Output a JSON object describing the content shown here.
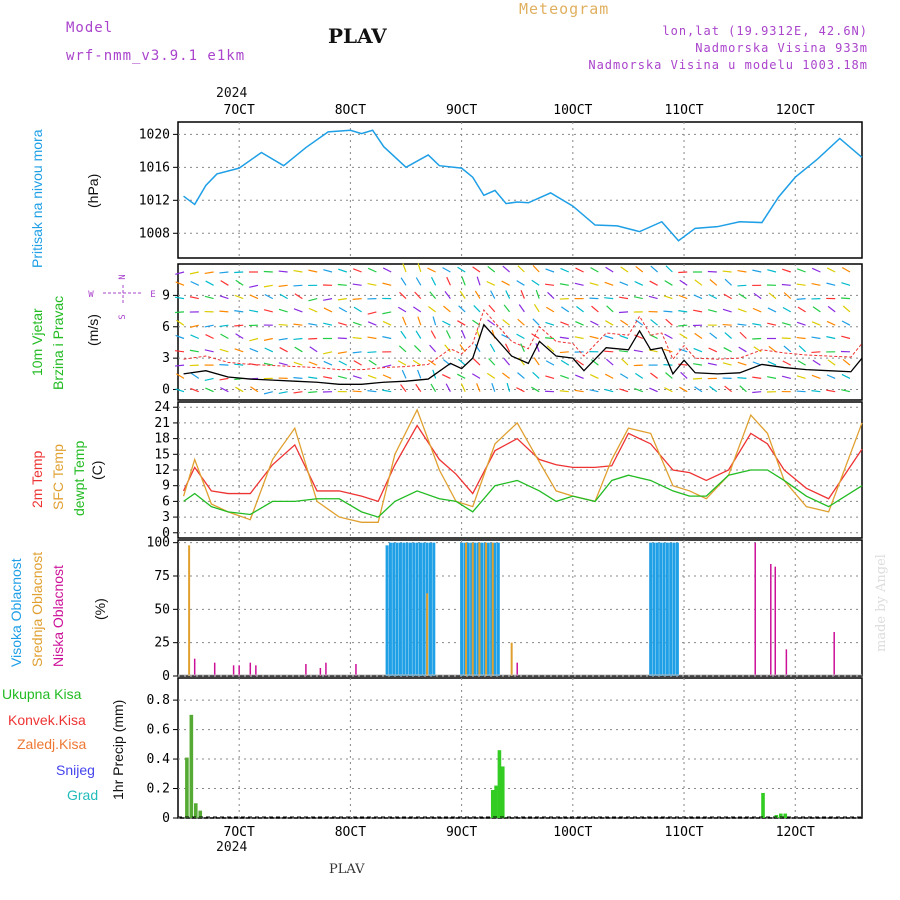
{
  "header": {
    "model_label": "Model",
    "model_name": "wrf-nmm_v3.9.1  e1km",
    "station": "PLAV",
    "meteogram": "Meteogram",
    "lonlat": "lon,lat (19.9312E, 42.6N)",
    "elevation": "Nadmorska Visina 933m",
    "model_elevation": "Nadmorska Visina u modelu 1003.18m",
    "year_top": "2024",
    "year_bottom": "2024",
    "footer_station": "PLAV",
    "watermark": "made by Angel"
  },
  "colors": {
    "pressure": "#1e9fe6",
    "temp2m": "#ee3333",
    "sfc": "#e0a030",
    "dewpt": "#22bb22",
    "high": "#1e9fe6",
    "mid": "#e0a030",
    "low": "#cc1199",
    "precip": "#33cc22",
    "purple": "#aa44cc"
  },
  "chart_data": [
    {
      "type": "line",
      "panel": "pressure",
      "ylabel_title": "Pritisak na nivou mora",
      "ylabel_unit": "(hPa)",
      "x_ticks": [
        "7OCT",
        "8OCT",
        "9OCT",
        "10OCT",
        "11OCT",
        "12OCT"
      ],
      "ylim": [
        1005,
        1021.5
      ],
      "y_ticks": [
        "1008",
        "1012",
        "1016",
        "1020"
      ],
      "x": [
        6.5,
        6.6,
        6.7,
        6.8,
        7.0,
        7.2,
        7.4,
        7.6,
        7.8,
        8.0,
        8.1,
        8.2,
        8.3,
        8.5,
        8.7,
        8.8,
        9.0,
        9.1,
        9.2,
        9.3,
        9.4,
        9.5,
        9.6,
        9.8,
        10.0,
        10.2,
        10.4,
        10.6,
        10.8,
        10.95,
        11.1,
        11.3,
        11.5,
        11.7,
        11.85,
        12.0,
        12.2,
        12.4,
        12.6
      ],
      "values": [
        1012.5,
        1011.5,
        1013.8,
        1015.2,
        1015.9,
        1017.8,
        1016.2,
        1018.4,
        1020.3,
        1020.5,
        1020.1,
        1020.5,
        1018.5,
        1016.0,
        1017.5,
        1016.2,
        1015.9,
        1014.8,
        1012.6,
        1013.2,
        1011.6,
        1011.8,
        1011.7,
        1012.9,
        1011.3,
        1009.0,
        1008.9,
        1008.2,
        1009.4,
        1007.1,
        1008.6,
        1008.8,
        1009.4,
        1009.3,
        1012.4,
        1014.8,
        1017.0,
        1019.5,
        1017.2
      ],
      "grid": true
    },
    {
      "type": "scatter",
      "panel": "wind",
      "ylabel_title1": "10m Vjetar",
      "ylabel_title2": "Brzina i Pravac",
      "ylabel_unit": "(m/s)",
      "compass": {
        "n": "N",
        "s": "S",
        "e": "E",
        "w": "W"
      },
      "ylim": [
        -1,
        12
      ],
      "y_ticks": [
        "0",
        "3",
        "6",
        "9"
      ],
      "x": [
        6.5,
        6.7,
        6.9,
        7.1,
        7.3,
        7.5,
        7.7,
        7.9,
        8.1,
        8.3,
        8.5,
        8.7,
        8.9,
        9.0,
        9.1,
        9.2,
        9.3,
        9.45,
        9.6,
        9.7,
        9.85,
        10.0,
        10.1,
        10.3,
        10.5,
        10.6,
        10.7,
        10.8,
        10.9,
        11.0,
        11.1,
        11.3,
        11.5,
        11.7,
        11.9,
        12.1,
        12.3,
        12.5,
        12.6
      ],
      "values": [
        1.5,
        1.8,
        1.2,
        1.0,
        0.9,
        0.8,
        0.7,
        0.5,
        0.5,
        0.7,
        0.8,
        1.0,
        2.5,
        2.0,
        3.0,
        6.2,
        5.0,
        3.2,
        2.5,
        4.6,
        3.2,
        3.0,
        1.8,
        4.0,
        3.8,
        5.6,
        3.8,
        4.0,
        1.5,
        2.8,
        1.6,
        1.5,
        1.6,
        2.4,
        2.1,
        1.9,
        1.8,
        1.7,
        3.0
      ],
      "grid": true
    },
    {
      "type": "line",
      "panel": "temperature",
      "ylabel_2m": "2m Temp",
      "ylabel_sfc": "SFC Temp",
      "ylabel_dew": "dewpt Temp",
      "ylabel_unit": "(C)",
      "ylim": [
        -1,
        25
      ],
      "y_ticks": [
        "0",
        "3",
        "6",
        "9",
        "12",
        "15",
        "18",
        "21",
        "24"
      ],
      "x": [
        6.5,
        6.6,
        6.75,
        6.9,
        7.1,
        7.3,
        7.5,
        7.7,
        7.9,
        8.1,
        8.25,
        8.4,
        8.6,
        8.8,
        8.95,
        9.1,
        9.3,
        9.5,
        9.7,
        9.85,
        10.0,
        10.2,
        10.35,
        10.5,
        10.7,
        10.9,
        11.05,
        11.2,
        11.4,
        11.6,
        11.75,
        11.9,
        12.1,
        12.3,
        12.6
      ],
      "series": [
        {
          "name": "2m Temp",
          "values": [
            8,
            12.5,
            8,
            7.5,
            7.5,
            13,
            16.8,
            8,
            8,
            7,
            6,
            13,
            20.5,
            14,
            11.2,
            7.5,
            15.7,
            18,
            14,
            13,
            12.5,
            12.5,
            12.8,
            19,
            17,
            12,
            11.5,
            10,
            12,
            19,
            17,
            12,
            8.5,
            6.5,
            16
          ]
        },
        {
          "name": "SFC Temp",
          "values": [
            7,
            14,
            5.5,
            4,
            2.5,
            14,
            20,
            6,
            3,
            2,
            2,
            15,
            23.5,
            12,
            6,
            5,
            17,
            21,
            13.5,
            8,
            7,
            6,
            14,
            20,
            19,
            9,
            8,
            6.5,
            11,
            22.5,
            19,
            10,
            5,
            4,
            21
          ]
        },
        {
          "name": "dewpt Temp",
          "values": [
            6,
            7.5,
            5,
            4,
            3.5,
            6,
            6,
            6.5,
            6.5,
            4,
            3,
            6,
            8,
            6.5,
            6,
            4,
            9,
            10,
            8,
            6,
            7,
            6,
            10,
            11,
            10,
            8,
            7,
            7,
            11,
            12,
            12,
            10,
            7,
            5,
            9
          ]
        }
      ],
      "grid": true
    },
    {
      "type": "bar",
      "panel": "cloud",
      "ylabel_high": "Visoka Oblacnost",
      "ylabel_mid": "Srednja Oblacnost",
      "ylabel_low": "Niska Oblacnost",
      "ylabel_unit": "(%)",
      "ylim": [
        0,
        102
      ],
      "y_ticks": [
        "0",
        "25",
        "50",
        "75",
        "100"
      ],
      "series": [
        {
          "name": "Visoka Oblacnost",
          "x": [
            8.33,
            8.36,
            8.39,
            8.42,
            8.45,
            8.48,
            8.51,
            8.54,
            8.57,
            8.6,
            8.63,
            8.66,
            8.69,
            8.72,
            8.75,
            9.0,
            9.03,
            9.06,
            9.09,
            9.12,
            9.15,
            9.18,
            9.21,
            9.24,
            9.27,
            9.3,
            9.33,
            10.7,
            10.73,
            10.76,
            10.79,
            10.82,
            10.85,
            10.88,
            10.91,
            10.94
          ],
          "values": [
            98,
            100,
            100,
            100,
            100,
            100,
            100,
            100,
            100,
            100,
            100,
            100,
            100,
            100,
            100,
            100,
            100,
            100,
            100,
            100,
            100,
            100,
            100,
            100,
            100,
            100,
            100,
            100,
            100,
            100,
            100,
            100,
            100,
            100,
            100,
            100
          ]
        },
        {
          "name": "Srednja Oblacnost",
          "x": [
            6.55,
            8.69,
            9.04,
            9.1,
            9.16,
            9.22,
            9.28,
            9.45
          ],
          "values": [
            98,
            62,
            100,
            100,
            100,
            100,
            100,
            25
          ]
        },
        {
          "name": "Niska Oblacnost",
          "x": [
            6.6,
            6.78,
            6.95,
            7.0,
            7.1,
            7.15,
            7.6,
            7.73,
            7.78,
            8.05,
            9.5,
            11.64,
            11.78,
            11.82,
            11.92,
            12.35
          ],
          "values": [
            13,
            10,
            8,
            8,
            10,
            8,
            9,
            6,
            10,
            9,
            10,
            100,
            84,
            82,
            20,
            33
          ]
        }
      ],
      "grid": true
    },
    {
      "type": "bar",
      "panel": "precip",
      "legend": [
        "Ukupna  Kisa",
        "Konvek.Kisa",
        "Zaledj.Kisa",
        "Snijeg",
        "Grad"
      ],
      "ylabel_unit": "1hr Precip (mm)",
      "ylim": [
        0,
        0.95
      ],
      "y_ticks": [
        "0",
        "0.2",
        "0.4",
        "0.6",
        "0.8"
      ],
      "x": [
        6.53,
        6.57,
        6.61,
        6.65,
        9.28,
        9.31,
        9.34,
        9.37,
        11.71,
        11.83,
        11.87,
        11.91
      ],
      "values": [
        0.41,
        0.7,
        0.1,
        0.05,
        0.19,
        0.22,
        0.46,
        0.35,
        0.17,
        0.02,
        0.03,
        0.03
      ],
      "grid": true
    }
  ]
}
